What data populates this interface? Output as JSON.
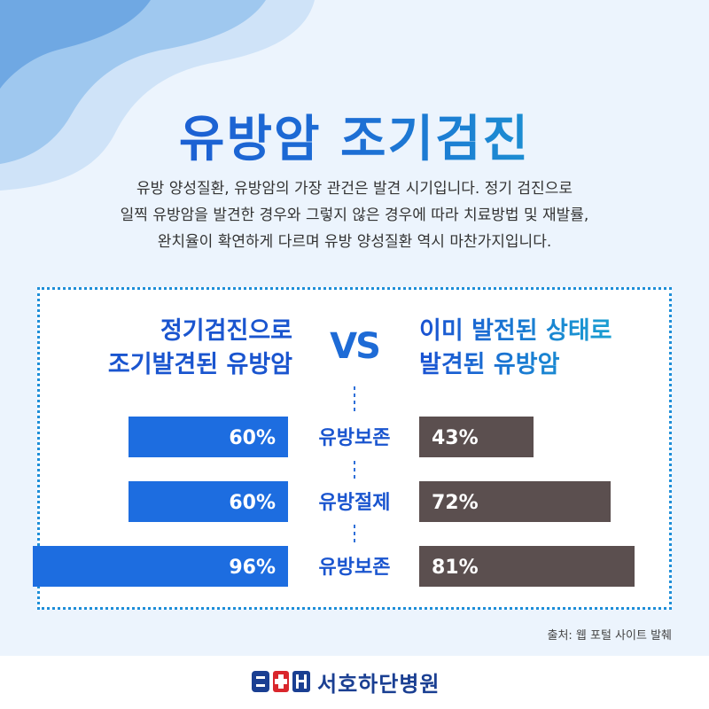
{
  "title": "유방암 조기검진",
  "intro": [
    "유방 양성질환, 유방암의 가장 관건은 발견 시기입니다. 정기 검진으로",
    "일찍 유방암을 발견한 경우와 그렇지 않은 경우에 따라 치료방법 및 재발률,",
    "완치율이 확연하게 다르며 유방 양성질환 역시 마찬가지입니다."
  ],
  "comparison": {
    "left_heading": [
      "정기검진으로",
      "조기발견된 유방암"
    ],
    "vs": "VS",
    "right_heading": [
      "이미 발전된 상태로",
      "발견된 유방암"
    ]
  },
  "chart_data": {
    "type": "bar",
    "categories": [
      "유방보존",
      "유방절제",
      "유방보존"
    ],
    "series": [
      {
        "values": [
          60,
          60,
          96
        ],
        "labels": [
          "60%",
          "60%",
          "96%"
        ],
        "color": "#1d6de0"
      },
      {
        "values": [
          43,
          72,
          81
        ],
        "labels": [
          "43%",
          "72%",
          "81%"
        ],
        "color": "#5b4f4f"
      }
    ],
    "ylim": [
      0,
      100
    ]
  },
  "colors": {
    "left_bar": "#1d6de0",
    "right_bar": "#5b4f4f",
    "category_text": "#1a55cf",
    "divider": "#2e6fd8"
  },
  "source": "출처: 웹 포털 사이트 발췌",
  "footer": {
    "logo_mark": "SH",
    "hospital_name": "서호하단병원"
  }
}
